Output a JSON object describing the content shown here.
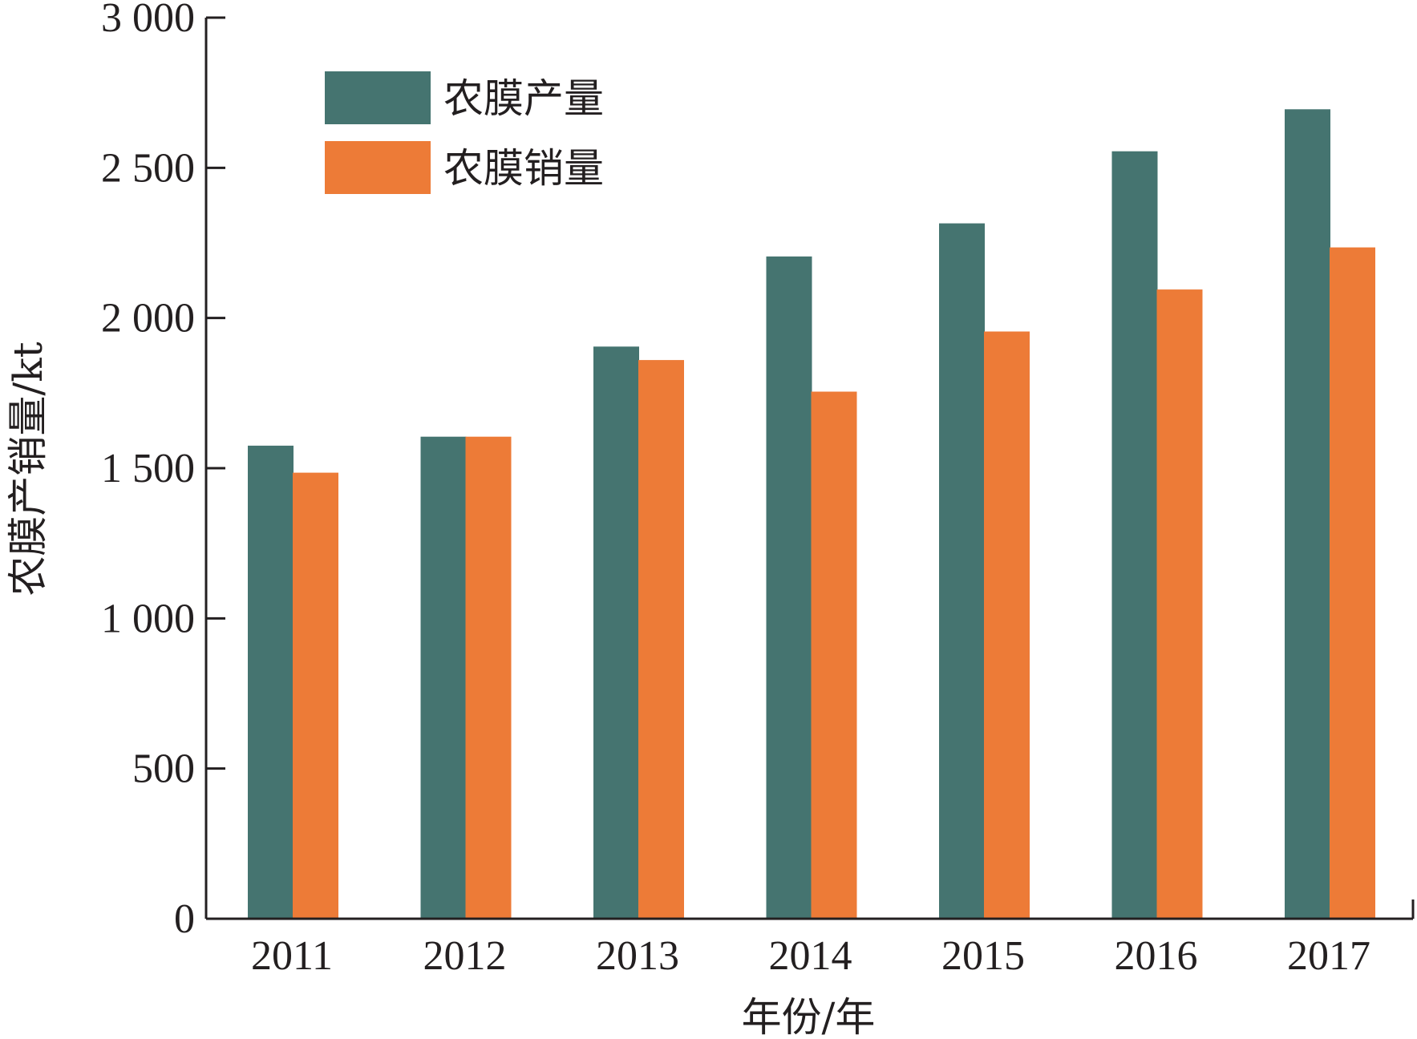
{
  "chart_data": {
    "type": "bar",
    "categories": [
      "2011",
      "2012",
      "2013",
      "2014",
      "2015",
      "2016",
      "2017"
    ],
    "series": [
      {
        "name": "农膜产量",
        "color": "#457470",
        "values": [
          1575,
          1605,
          1905,
          2205,
          2315,
          2555,
          2695
        ]
      },
      {
        "name": "农膜销量",
        "color": "#ed7b37",
        "values": [
          1485,
          1605,
          1860,
          1755,
          1955,
          2095,
          2235
        ]
      }
    ],
    "xlabel": "年份/年",
    "ylabel": "农膜产销量/kt",
    "ylim": [
      0,
      3000
    ],
    "yticks": [
      0,
      500,
      1000,
      1500,
      2000,
      2500,
      3000
    ],
    "ytick_labels": [
      "0",
      "500",
      "1 000",
      "1 500",
      "2 000",
      "2 500",
      "3 000"
    ],
    "grid": false,
    "legend_position": "top-left"
  }
}
